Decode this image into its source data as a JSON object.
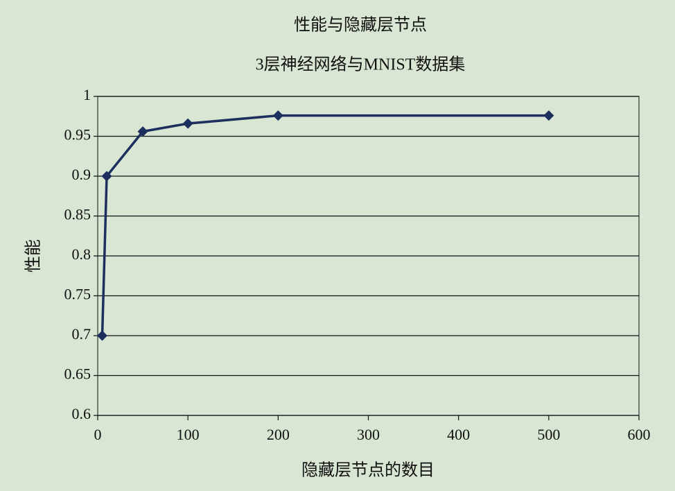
{
  "chart_data": {
    "type": "line",
    "title": "性能与隐藏层节点",
    "subtitle": "3层神经网络与MNIST数据集",
    "x_label": "隐藏层节点的数目",
    "y_label": "性能",
    "x": [
      5,
      10,
      50,
      100,
      200,
      500
    ],
    "values": [
      0.7,
      0.9,
      0.956,
      0.966,
      0.976,
      0.976
    ],
    "color": "#1c2f5e",
    "xlim": [
      0,
      600
    ],
    "xticks": [
      0,
      100,
      200,
      300,
      400,
      500,
      600
    ],
    "ylim": [
      0.6,
      1
    ],
    "yticks": [
      0.6,
      0.65,
      0.7,
      0.75,
      0.8,
      0.85,
      0.9,
      0.95,
      1
    ],
    "grid": true
  }
}
